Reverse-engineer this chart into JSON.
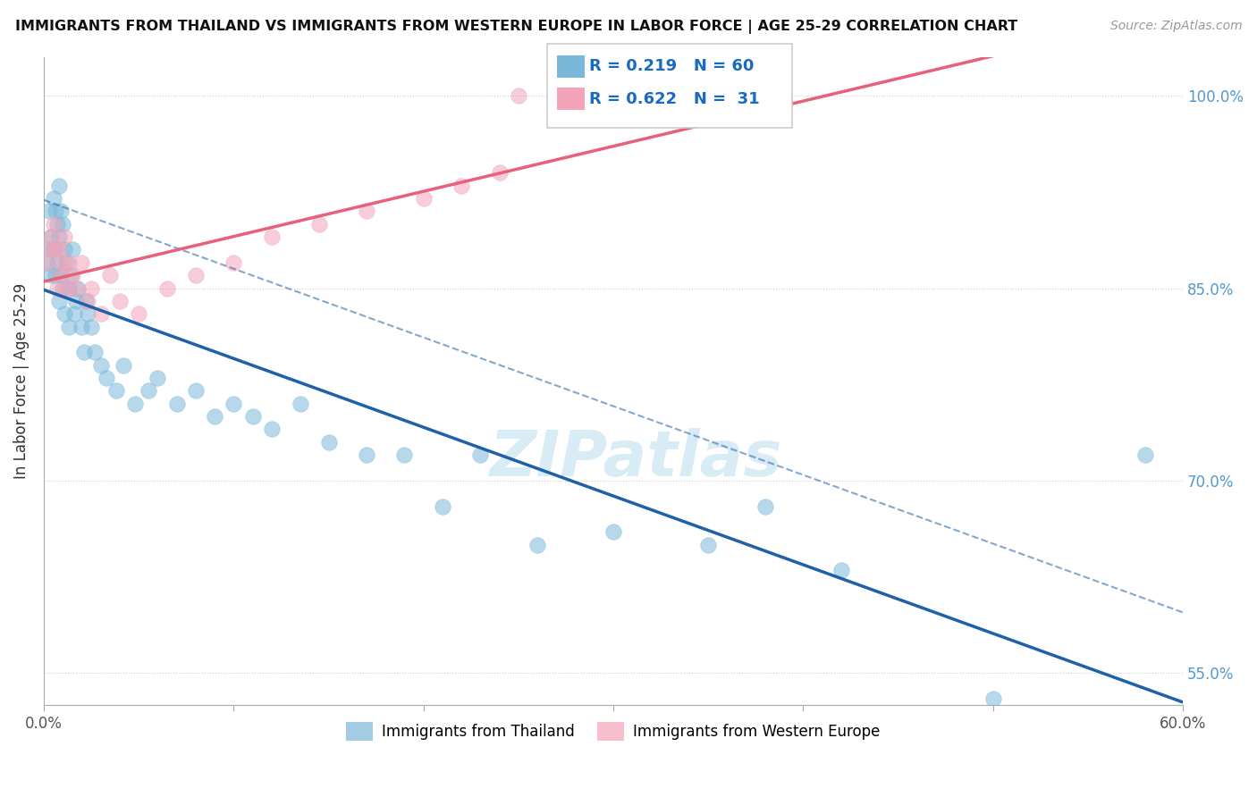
{
  "title": "IMMIGRANTS FROM THAILAND VS IMMIGRANTS FROM WESTERN EUROPE IN LABOR FORCE | AGE 25-29 CORRELATION CHART",
  "source": "Source: ZipAtlas.com",
  "ylabel": "In Labor Force | Age 25-29",
  "xlim": [
    0.0,
    0.6
  ],
  "ylim": [
    0.525,
    1.03
  ],
  "xticklabels_pos": [
    0.0,
    0.6
  ],
  "xticklabels_text": [
    "0.0%",
    "60.0%"
  ],
  "ytick_labeled": [
    0.55,
    0.7,
    0.85,
    1.0
  ],
  "ytick_labeled_text": [
    "55.0%",
    "70.0%",
    "85.0%",
    "100.0%"
  ],
  "ytick_gridonly": [
    0.55,
    0.7,
    0.85
  ],
  "R_thailand": 0.219,
  "N_thailand": 60,
  "R_western": 0.622,
  "N_western": 31,
  "thailand_color": "#7ab8d9",
  "western_color": "#f4a3b8",
  "thailand_line_color": "#2060a8",
  "western_line_color": "#e8607a",
  "background_color": "#ffffff",
  "watermark_text": "ZIPatlas",
  "thailand_x": [
    0.002,
    0.003,
    0.003,
    0.004,
    0.004,
    0.005,
    0.005,
    0.006,
    0.006,
    0.007,
    0.007,
    0.008,
    0.008,
    0.008,
    0.009,
    0.009,
    0.01,
    0.01,
    0.011,
    0.011,
    0.012,
    0.013,
    0.013,
    0.014,
    0.015,
    0.016,
    0.017,
    0.018,
    0.02,
    0.021,
    0.022,
    0.023,
    0.025,
    0.027,
    0.03,
    0.033,
    0.038,
    0.042,
    0.048,
    0.055,
    0.06,
    0.07,
    0.08,
    0.09,
    0.1,
    0.11,
    0.12,
    0.135,
    0.15,
    0.17,
    0.19,
    0.21,
    0.23,
    0.26,
    0.3,
    0.35,
    0.38,
    0.42,
    0.5,
    0.58
  ],
  "thailand_y": [
    0.87,
    0.91,
    0.88,
    0.89,
    0.86,
    0.92,
    0.88,
    0.91,
    0.86,
    0.9,
    0.87,
    0.93,
    0.89,
    0.84,
    0.91,
    0.86,
    0.9,
    0.85,
    0.88,
    0.83,
    0.87,
    0.85,
    0.82,
    0.86,
    0.88,
    0.83,
    0.84,
    0.85,
    0.82,
    0.8,
    0.84,
    0.83,
    0.82,
    0.8,
    0.79,
    0.78,
    0.77,
    0.79,
    0.76,
    0.77,
    0.78,
    0.76,
    0.77,
    0.75,
    0.76,
    0.75,
    0.74,
    0.76,
    0.73,
    0.72,
    0.72,
    0.68,
    0.72,
    0.65,
    0.66,
    0.65,
    0.68,
    0.63,
    0.53,
    0.72
  ],
  "western_x": [
    0.002,
    0.003,
    0.004,
    0.005,
    0.006,
    0.007,
    0.008,
    0.009,
    0.01,
    0.011,
    0.012,
    0.013,
    0.015,
    0.017,
    0.02,
    0.023,
    0.025,
    0.03,
    0.035,
    0.04,
    0.05,
    0.065,
    0.08,
    0.1,
    0.12,
    0.145,
    0.17,
    0.2,
    0.22,
    0.24,
    0.25
  ],
  "western_y": [
    0.87,
    0.88,
    0.89,
    0.9,
    0.88,
    0.85,
    0.88,
    0.86,
    0.87,
    0.89,
    0.85,
    0.87,
    0.86,
    0.85,
    0.87,
    0.84,
    0.85,
    0.83,
    0.86,
    0.84,
    0.83,
    0.85,
    0.86,
    0.87,
    0.89,
    0.9,
    0.91,
    0.92,
    0.93,
    0.94,
    1.0
  ],
  "legend_R_color": "#1a6abf",
  "legend_N_color": "#1a6abf"
}
